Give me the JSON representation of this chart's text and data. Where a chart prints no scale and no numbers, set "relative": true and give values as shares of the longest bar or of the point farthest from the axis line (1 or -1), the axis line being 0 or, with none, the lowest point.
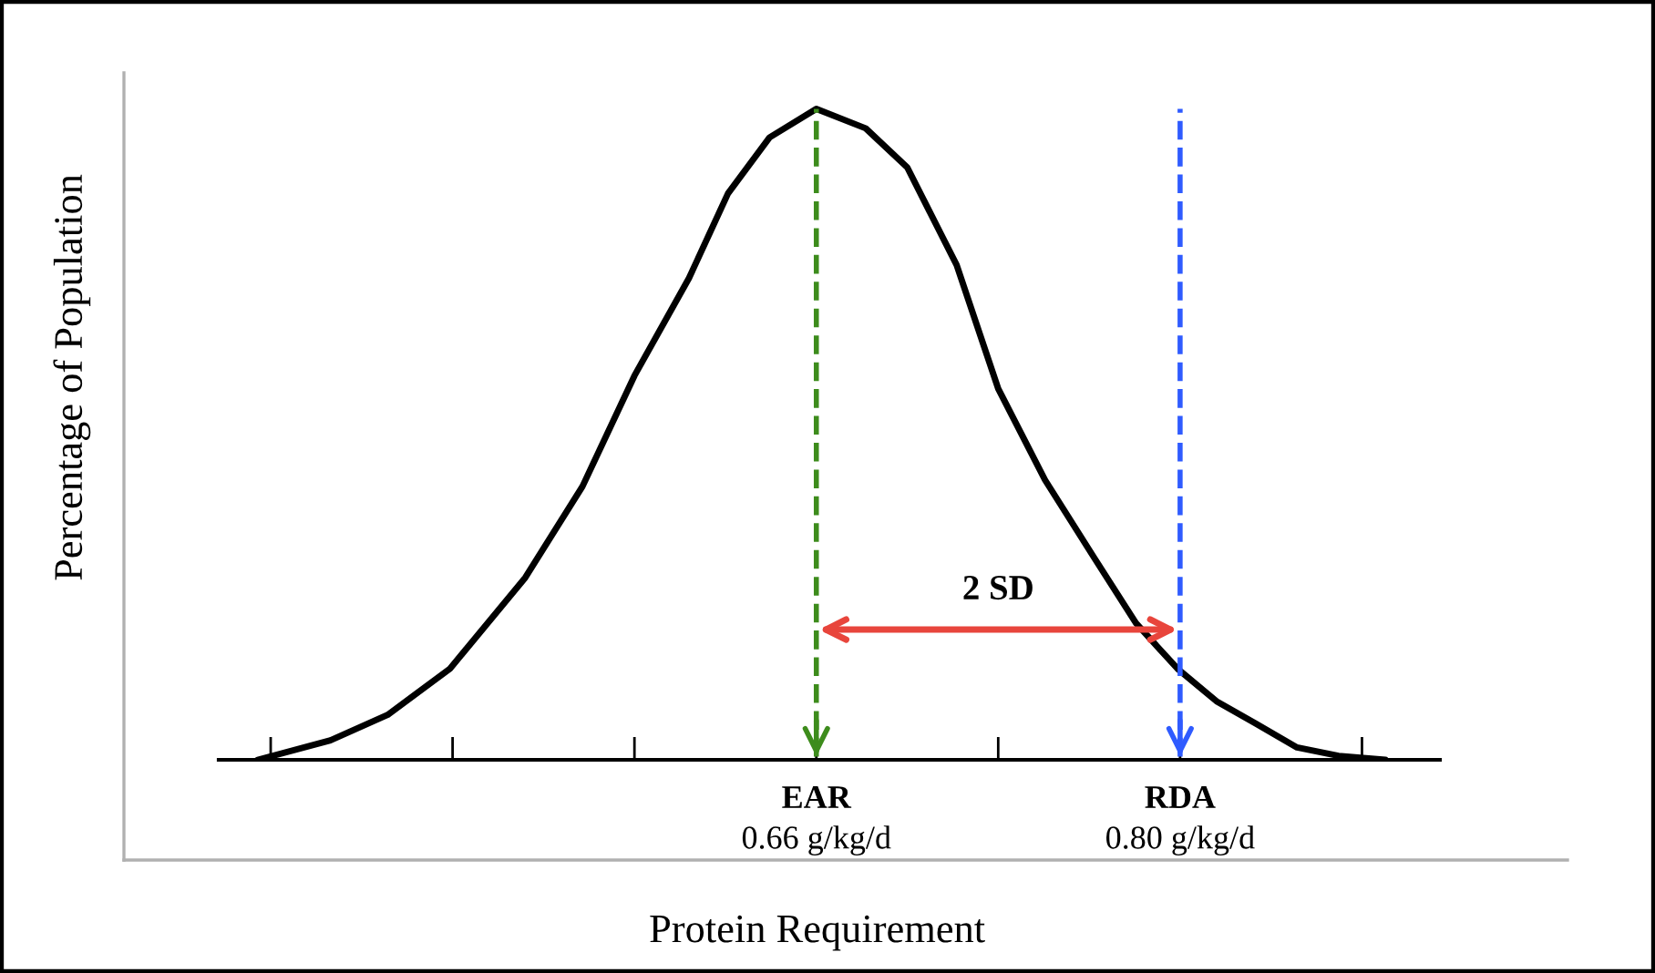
{
  "chart_data": {
    "type": "line",
    "relative": true,
    "xlabel": "Protein Requirement",
    "ylabel": "Percentage of Population",
    "series": [
      {
        "color": "#000000",
        "x": [
          0.445,
          0.473,
          0.495,
          0.519,
          0.548,
          0.57,
          0.59,
          0.611,
          0.626,
          0.642,
          0.66,
          0.679,
          0.695,
          0.714,
          0.73,
          0.748,
          0.767,
          0.783,
          0.799,
          0.814,
          0.829,
          0.845,
          0.861,
          0.879
        ],
        "values": [
          0,
          0.03,
          0.069,
          0.14,
          0.28,
          0.42,
          0.59,
          0.74,
          0.87,
          0.956,
          1,
          0.97,
          0.91,
          0.76,
          0.57,
          0.43,
          0.31,
          0.21,
          0.14,
          0.09,
          0.056,
          0.019,
          0.006,
          0
        ]
      }
    ],
    "xlim": [
      0.43,
      0.9
    ],
    "xticks": [
      {
        "value": 0.45,
        "label": null
      },
      {
        "value": 0.52,
        "label": null
      },
      {
        "value": 0.59,
        "label": null
      },
      {
        "value": 0.66,
        "label": "0.66 g/kg/d"
      },
      {
        "value": 0.73,
        "label": null
      },
      {
        "value": 0.8,
        "label": "0.80 g/kg/d"
      },
      {
        "value": 0.87,
        "label": null
      }
    ],
    "tick_labels": "x",
    "ref_lines": [
      {
        "axis": "x",
        "value": 0.66,
        "label": "EAR",
        "color": "#3d8c1c",
        "line_style": "dashed"
      },
      {
        "axis": "x",
        "value": 0.8,
        "label": "RDA",
        "color": "#2f5bff",
        "line_style": "dashed"
      }
    ],
    "annotations": [
      "2 SD"
    ],
    "grid": false,
    "legend": false,
    "marker": "none",
    "line_style": "solid"
  }
}
